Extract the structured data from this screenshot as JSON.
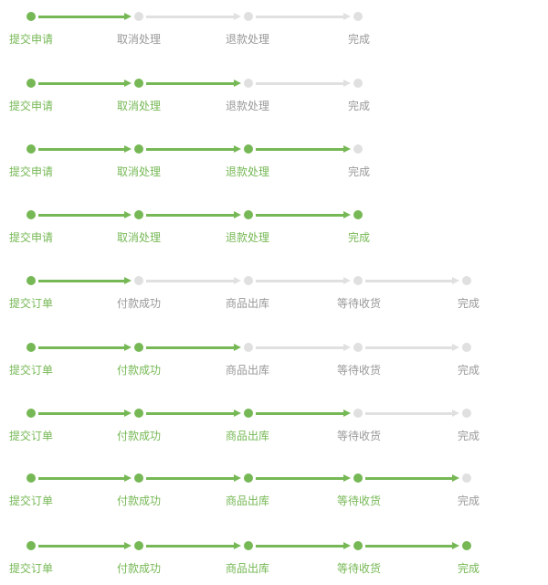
{
  "colors": {
    "done": "#76b855",
    "pending": "#e0e0e0",
    "done_text": "#76b855",
    "pending_text": "#999999"
  },
  "refund_flows": [
    {
      "steps": [
        "提交申请",
        "取消处理",
        "退款处理",
        "完成"
      ],
      "completed": 1
    },
    {
      "steps": [
        "提交申请",
        "取消处理",
        "退款处理",
        "完成"
      ],
      "completed": 2
    },
    {
      "steps": [
        "提交申请",
        "取消处理",
        "退款处理",
        "完成"
      ],
      "completed": 3
    },
    {
      "steps": [
        "提交申请",
        "取消处理",
        "退款处理",
        "完成"
      ],
      "completed": 4
    }
  ],
  "order_flows": [
    {
      "steps": [
        "提交订单",
        "付款成功",
        "商品出库",
        "等待收货",
        "完成"
      ],
      "completed": 1
    },
    {
      "steps": [
        "提交订单",
        "付款成功",
        "商品出库",
        "等待收货",
        "完成"
      ],
      "completed": 2
    },
    {
      "steps": [
        "提交订单",
        "付款成功",
        "商品出库",
        "等待收货",
        "完成"
      ],
      "completed": 3
    },
    {
      "steps": [
        "提交订单",
        "付款成功",
        "商品出库",
        "等待收货",
        "完成"
      ],
      "completed": 4
    },
    {
      "steps": [
        "提交订单",
        "付款成功",
        "商品出库",
        "等待收货",
        "完成"
      ],
      "completed": 5
    }
  ]
}
